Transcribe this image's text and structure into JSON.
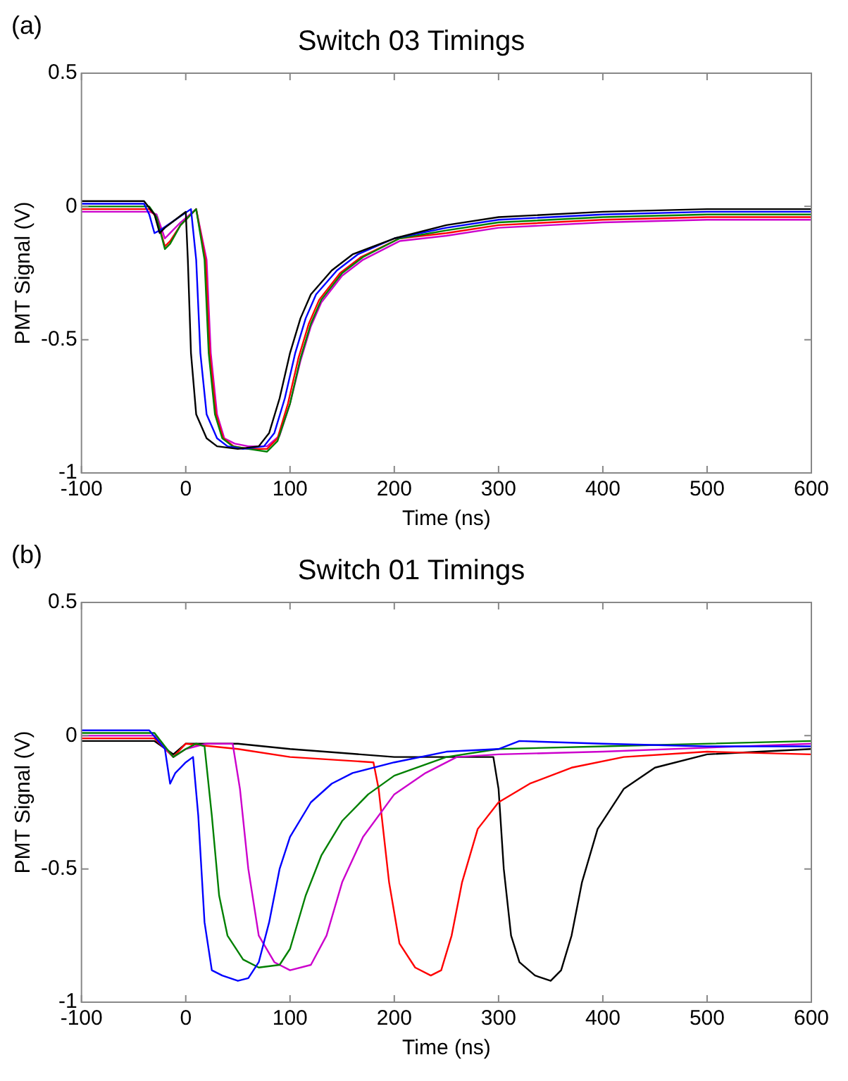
{
  "chart_data": [
    {
      "type": "line",
      "title": "Switch 03 Timings",
      "xlabel": "Time (ns)",
      "ylabel": "PMT Signal (V)",
      "annotations": [
        "(a)"
      ],
      "xlim": [
        -100,
        600
      ],
      "xticks": [
        -100,
        0,
        100,
        200,
        300,
        400,
        500,
        600
      ],
      "ylim": [
        -1,
        0.5
      ],
      "yticks": [
        -1,
        -0.5,
        0,
        0.5
      ],
      "grid": false,
      "legend": false,
      "series": [
        {
          "color": "#000000",
          "x": [
            -100,
            -40,
            -30,
            -25,
            -20,
            -10,
            0,
            2,
            5,
            10,
            20,
            30,
            50,
            70,
            80,
            90,
            100,
            110,
            120,
            140,
            160,
            200,
            250,
            300,
            400,
            500,
            600
          ],
          "values": [
            0.02,
            0.02,
            -0.03,
            -0.1,
            -0.08,
            -0.05,
            -0.02,
            -0.2,
            -0.55,
            -0.78,
            -0.87,
            -0.9,
            -0.91,
            -0.9,
            -0.85,
            -0.72,
            -0.55,
            -0.42,
            -0.33,
            -0.24,
            -0.18,
            -0.12,
            -0.07,
            -0.04,
            -0.02,
            -0.01,
            -0.01
          ]
        },
        {
          "color": "#0000ff",
          "x": [
            -100,
            -40,
            -35,
            -30,
            -25,
            -10,
            5,
            10,
            14,
            20,
            30,
            40,
            55,
            75,
            85,
            95,
            105,
            115,
            125,
            145,
            165,
            200,
            250,
            300,
            400,
            500,
            600
          ],
          "values": [
            0.01,
            0.01,
            -0.03,
            -0.1,
            -0.09,
            -0.05,
            -0.01,
            -0.2,
            -0.55,
            -0.78,
            -0.87,
            -0.9,
            -0.91,
            -0.9,
            -0.85,
            -0.72,
            -0.55,
            -0.42,
            -0.33,
            -0.24,
            -0.18,
            -0.12,
            -0.08,
            -0.05,
            -0.03,
            -0.02,
            -0.02
          ]
        },
        {
          "color": "#008000",
          "x": [
            -100,
            -35,
            -28,
            -20,
            -15,
            -5,
            10,
            18,
            22,
            28,
            35,
            45,
            60,
            78,
            88,
            100,
            110,
            120,
            130,
            150,
            170,
            205,
            250,
            300,
            400,
            500,
            600
          ],
          "values": [
            0,
            0,
            -0.04,
            -0.16,
            -0.14,
            -0.07,
            -0.01,
            -0.2,
            -0.55,
            -0.78,
            -0.87,
            -0.9,
            -0.91,
            -0.92,
            -0.88,
            -0.74,
            -0.57,
            -0.44,
            -0.35,
            -0.25,
            -0.19,
            -0.12,
            -0.09,
            -0.06,
            -0.04,
            -0.03,
            -0.03
          ]
        },
        {
          "color": "#ff0000",
          "x": [
            -100,
            -35,
            -28,
            -20,
            -15,
            -5,
            10,
            19,
            23,
            29,
            36,
            46,
            60,
            78,
            88,
            98,
            108,
            118,
            128,
            148,
            168,
            205,
            250,
            300,
            400,
            500,
            600
          ],
          "values": [
            -0.01,
            -0.01,
            -0.04,
            -0.15,
            -0.13,
            -0.07,
            -0.01,
            -0.2,
            -0.55,
            -0.78,
            -0.87,
            -0.9,
            -0.91,
            -0.91,
            -0.87,
            -0.74,
            -0.57,
            -0.44,
            -0.35,
            -0.25,
            -0.19,
            -0.12,
            -0.1,
            -0.07,
            -0.05,
            -0.04,
            -0.04
          ]
        },
        {
          "color": "#cc00cc",
          "x": [
            -100,
            -35,
            -28,
            -20,
            -15,
            -5,
            10,
            20,
            24,
            30,
            37,
            47,
            60,
            78,
            90,
            100,
            110,
            120,
            130,
            150,
            170,
            205,
            250,
            300,
            400,
            500,
            600
          ],
          "values": [
            -0.02,
            -0.02,
            -0.03,
            -0.12,
            -0.1,
            -0.06,
            -0.01,
            -0.2,
            -0.55,
            -0.78,
            -0.87,
            -0.89,
            -0.9,
            -0.9,
            -0.86,
            -0.74,
            -0.58,
            -0.45,
            -0.36,
            -0.26,
            -0.2,
            -0.13,
            -0.11,
            -0.08,
            -0.06,
            -0.05,
            -0.05
          ]
        }
      ]
    },
    {
      "type": "line",
      "title": "Switch 01 Timings",
      "xlabel": "Time (ns)",
      "ylabel": "PMT Signal (V)",
      "annotations": [
        "(b)"
      ],
      "xlim": [
        -100,
        600
      ],
      "xticks": [
        -100,
        0,
        100,
        200,
        300,
        400,
        500,
        600
      ],
      "ylim": [
        -1,
        0.5
      ],
      "yticks": [
        -1,
        -0.5,
        0,
        0.5
      ],
      "grid": false,
      "legend": false,
      "series": [
        {
          "color": "#0000ff",
          "x": [
            -100,
            -35,
            -20,
            -15,
            -10,
            0,
            7,
            12,
            18,
            25,
            35,
            50,
            60,
            70,
            80,
            90,
            100,
            120,
            140,
            160,
            200,
            250,
            300,
            320,
            400,
            500,
            600
          ],
          "values": [
            0.02,
            0.02,
            -0.05,
            -0.18,
            -0.14,
            -0.1,
            -0.08,
            -0.3,
            -0.7,
            -0.88,
            -0.9,
            -0.92,
            -0.91,
            -0.85,
            -0.7,
            -0.5,
            -0.38,
            -0.25,
            -0.18,
            -0.14,
            -0.1,
            -0.06,
            -0.05,
            -0.02,
            -0.03,
            -0.04,
            -0.04
          ]
        },
        {
          "color": "#008000",
          "x": [
            -100,
            -30,
            -12,
            0,
            10,
            18,
            25,
            32,
            40,
            55,
            70,
            90,
            100,
            115,
            130,
            150,
            175,
            200,
            250,
            300,
            400,
            600
          ],
          "values": [
            0.01,
            0.01,
            -0.08,
            -0.05,
            -0.03,
            -0.04,
            -0.3,
            -0.6,
            -0.75,
            -0.84,
            -0.87,
            -0.86,
            -0.8,
            -0.6,
            -0.45,
            -0.32,
            -0.22,
            -0.15,
            -0.08,
            -0.05,
            -0.04,
            -0.02
          ]
        },
        {
          "color": "#cc00cc",
          "x": [
            -100,
            -30,
            -12,
            0,
            20,
            45,
            52,
            60,
            70,
            85,
            100,
            120,
            135,
            150,
            170,
            200,
            230,
            260,
            300,
            400,
            600
          ],
          "values": [
            0,
            0,
            -0.08,
            -0.05,
            -0.03,
            -0.03,
            -0.2,
            -0.5,
            -0.75,
            -0.85,
            -0.88,
            -0.86,
            -0.75,
            -0.55,
            -0.38,
            -0.22,
            -0.14,
            -0.08,
            -0.07,
            -0.06,
            -0.03
          ]
        },
        {
          "color": "#ff0000",
          "x": [
            -100,
            -30,
            -12,
            0,
            50,
            100,
            180,
            185,
            195,
            205,
            220,
            235,
            245,
            255,
            265,
            280,
            300,
            330,
            370,
            420,
            500,
            600
          ],
          "values": [
            -0.01,
            -0.01,
            -0.08,
            -0.03,
            -0.05,
            -0.08,
            -0.1,
            -0.2,
            -0.55,
            -0.78,
            -0.87,
            -0.9,
            -0.88,
            -0.75,
            -0.55,
            -0.35,
            -0.25,
            -0.18,
            -0.12,
            -0.08,
            -0.06,
            -0.07
          ]
        },
        {
          "color": "#000000",
          "x": [
            -100,
            -30,
            -12,
            0,
            50,
            100,
            200,
            250,
            295,
            300,
            305,
            312,
            320,
            335,
            350,
            360,
            370,
            380,
            395,
            420,
            450,
            500,
            600
          ],
          "values": [
            -0.02,
            -0.02,
            -0.07,
            -0.03,
            -0.03,
            -0.05,
            -0.08,
            -0.08,
            -0.08,
            -0.2,
            -0.5,
            -0.75,
            -0.85,
            -0.9,
            -0.92,
            -0.88,
            -0.75,
            -0.55,
            -0.35,
            -0.2,
            -0.12,
            -0.07,
            -0.05
          ]
        }
      ]
    }
  ]
}
